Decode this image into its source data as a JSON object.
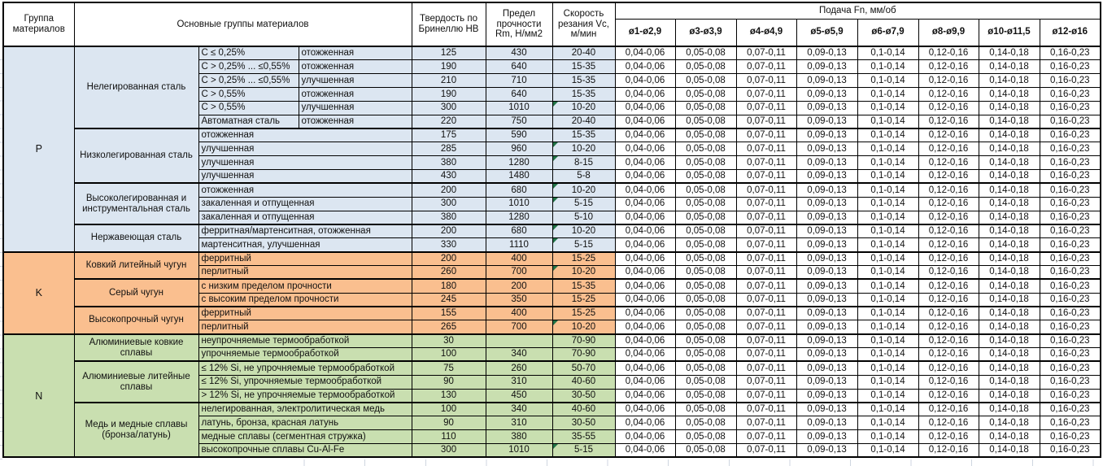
{
  "header": {
    "group": "Группа материалов",
    "main": "Основные группы материалов",
    "hardness": "Твердость по Бринеллю HB",
    "strength": "Предел прочности Rm, Н/мм2",
    "speed": "Скорость резания Vc, м/мин",
    "feed": "Подача Fn, мм/об",
    "feed_cols": [
      "ø1-ø2,9",
      "ø3-ø3,9",
      "ø4-ø4,9",
      "ø5-ø5,9",
      "ø6-ø7,9",
      "ø8-ø9,9",
      "ø10-ø11,5",
      "ø12-ø16"
    ]
  },
  "feed_values": [
    "0,04-0,06",
    "0,05-0,08",
    "0,07-0,11",
    "0,09-0,13",
    "0,1-0,14",
    "0,12-0,16",
    "0,14-0,18",
    "0,16-0,23"
  ],
  "colors": {
    "P": "#DCE6F1",
    "K": "#FABF8F",
    "N": "#C9DFB0",
    "flag": "#217346",
    "border": "#000000"
  },
  "groups": [
    {
      "code": "P",
      "subgroups": [
        {
          "name": "Нелегированная сталь",
          "rows": [
            {
              "spec": "C ≤ 0,25%",
              "state": "отожженная",
              "hb": "125",
              "rm": "430",
              "vc": "20-40",
              "flag": false
            },
            {
              "spec": "C > 0,25% ... ≤0,55%",
              "state": "отожженная",
              "hb": "190",
              "rm": "640",
              "vc": "15-35",
              "flag": false
            },
            {
              "spec": "C > 0,25% ... ≤0,55%",
              "state": "улучшенная",
              "hb": "210",
              "rm": "710",
              "vc": "15-35",
              "flag": false
            },
            {
              "spec": "C > 0,55%",
              "state": "отожженная",
              "hb": "190",
              "rm": "640",
              "vc": "15-35",
              "flag": false
            },
            {
              "spec": "C > 0,55%",
              "state": "улучшенная",
              "hb": "300",
              "rm": "1010",
              "vc": "10-20",
              "flag": true
            },
            {
              "spec": "Автоматная сталь",
              "state": "отожженная",
              "hb": "220",
              "rm": "750",
              "vc": "20-40",
              "flag": false
            }
          ]
        },
        {
          "name": "Низколегированная сталь",
          "rows": [
            {
              "desc": "отожженная",
              "hb": "175",
              "rm": "590",
              "vc": "15-35",
              "flag": false
            },
            {
              "desc": "улучшенная",
              "hb": "285",
              "rm": "960",
              "vc": "10-20",
              "flag": true
            },
            {
              "desc": "улучшенная",
              "hb": "380",
              "rm": "1280",
              "vc": "8-15",
              "flag": true
            },
            {
              "desc": "улучшенная",
              "hb": "430",
              "rm": "1480",
              "vc": "5-8",
              "flag": false
            }
          ]
        },
        {
          "name": "Высоколегированная и инструментальная сталь",
          "rows": [
            {
              "desc": "отожженная",
              "hb": "200",
              "rm": "680",
              "vc": "10-20",
              "flag": true
            },
            {
              "desc": "закаленная и отпущенная",
              "hb": "300",
              "rm": "1010",
              "vc": "5-15",
              "flag": true
            },
            {
              "desc": "закаленная и отпущенная",
              "hb": "380",
              "rm": "1280",
              "vc": "5-10",
              "flag": false
            }
          ]
        },
        {
          "name": "Нержавеющая сталь",
          "rows": [
            {
              "desc": "ферритная/мартенситная, отожженная",
              "hb": "200",
              "rm": "680",
              "vc": "10-20",
              "flag": true
            },
            {
              "desc": "мартенситная, улучшенная",
              "hb": "330",
              "rm": "1110",
              "vc": "5-15",
              "flag": true
            }
          ]
        }
      ]
    },
    {
      "code": "K",
      "subgroups": [
        {
          "name": "Ковкий литейный чугун",
          "rows": [
            {
              "desc": "ферритный",
              "hb": "200",
              "rm": "400",
              "vc": "15-25",
              "flag": false
            },
            {
              "desc": "перлитный",
              "hb": "260",
              "rm": "700",
              "vc": "10-20",
              "flag": true
            }
          ]
        },
        {
          "name": "Серый чугун",
          "rows": [
            {
              "desc": "с низким пределом прочности",
              "hb": "180",
              "rm": "200",
              "vc": "15-35",
              "flag": false
            },
            {
              "desc": "с высоким пределом прочности",
              "hb": "245",
              "rm": "350",
              "vc": "15-25",
              "flag": false
            }
          ]
        },
        {
          "name": "Высокопрочный чугун",
          "rows": [
            {
              "desc": "ферритный",
              "hb": "155",
              "rm": "400",
              "vc": "15-25",
              "flag": false
            },
            {
              "desc": "перлитный",
              "hb": "265",
              "rm": "700",
              "vc": "10-20",
              "flag": true
            }
          ]
        }
      ]
    },
    {
      "code": "N",
      "subgroups": [
        {
          "name": "Алюминиевые ковкие сплавы",
          "rows": [
            {
              "desc": "неупрочняемые термообработкой",
              "hb": "30",
              "rm": "",
              "vc": "70-90",
              "flag": false
            },
            {
              "desc": "упрочняемые термообработкой",
              "hb": "100",
              "rm": "340",
              "vc": "70-90",
              "flag": false
            }
          ]
        },
        {
          "name": "Алюминиевые литейные сплавы",
          "rows": [
            {
              "desc": "≤ 12% Si, не упрочняемые термообработкой",
              "hb": "75",
              "rm": "260",
              "vc": "50-70",
              "flag": false
            },
            {
              "desc": "≤ 12% Si, упрочняемые термообработкой",
              "hb": "90",
              "rm": "310",
              "vc": "40-60",
              "flag": false
            },
            {
              "desc": "> 12% Si, не упрочняемые термообработкой",
              "hb": "130",
              "rm": "450",
              "vc": "30-50",
              "flag": false
            }
          ]
        },
        {
          "name": "Медь и медные сплавы (бронза/латунь)",
          "rows": [
            {
              "desc": "нелегированная, электролитическая медь",
              "hb": "100",
              "rm": "340",
              "vc": "40-60",
              "flag": false
            },
            {
              "desc": "латунь, бронза, красная латунь",
              "hb": "90",
              "rm": "310",
              "vc": "30-50",
              "flag": false
            },
            {
              "desc": "медные сплавы (сегментная стружка)",
              "hb": "110",
              "rm": "380",
              "vc": "35-55",
              "flag": false
            },
            {
              "desc": "высокопрочные сплавы Cu-Al-Fe",
              "hb": "300",
              "rm": "1010",
              "vc": "5-15",
              "flag": true
            }
          ]
        }
      ]
    }
  ]
}
